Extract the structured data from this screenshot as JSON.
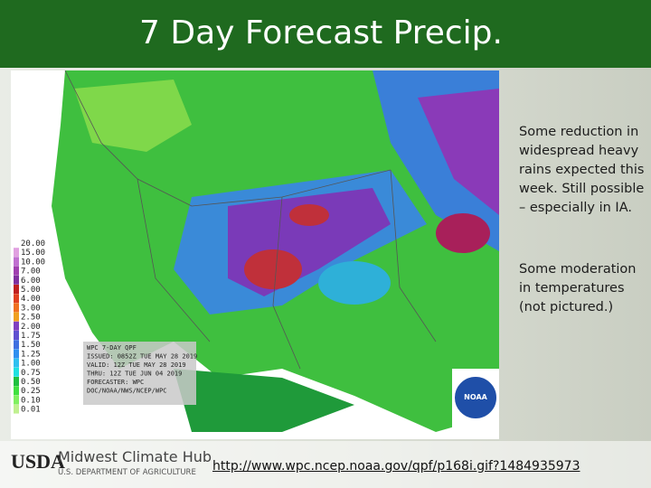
{
  "header": {
    "title": "7 Day Forecast Precip."
  },
  "map": {
    "legend": [
      "20.00",
      "15.00",
      "10.00",
      "7.00",
      "6.00",
      "5.00",
      "4.00",
      "3.00",
      "2.50",
      "2.00",
      "1.75",
      "1.50",
      "1.25",
      "1.00",
      "0.75",
      "0.50",
      "0.25",
      "0.10",
      "0.01"
    ],
    "info": [
      "WPC 7-DAY QPF",
      "ISSUED: 0852Z TUE MAY 28 2019",
      "VALID: 12Z TUE MAY 28 2019",
      "THRU: 12Z TUE JUN 04 2019",
      "FORECASTER: WPC",
      "DOC/NOAA/NWS/NCEP/WPC"
    ],
    "logo": "NOAA"
  },
  "notes": [
    "Some reduction in widespread heavy rains expected this week.  Still possible – especially in IA.",
    "Some moderation in temperatures (not pictured.)"
  ],
  "footer": {
    "agency": "USDA",
    "hub": "Midwest Climate Hub",
    "department": "U.S. DEPARTMENT OF AGRICULTURE",
    "link": "http://www.wpc.ncep.noaa.gov/qpf/p168i.gif?1484935973"
  }
}
